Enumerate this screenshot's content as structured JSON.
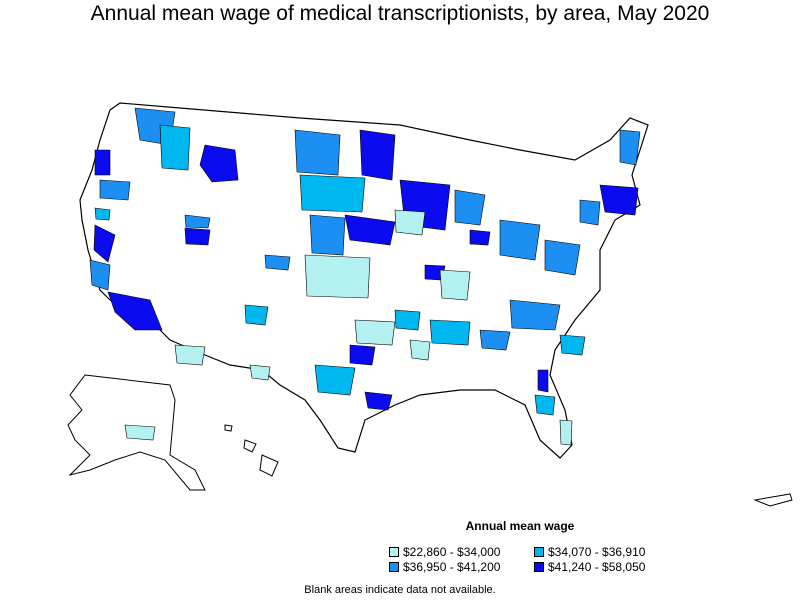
{
  "title": "Annual mean wage of medical transcriptionists, by area, May 2020",
  "legend": {
    "title": "Annual mean wage",
    "items": [
      {
        "label": "$22,860 - $34,000",
        "color": "#b3f0f0"
      },
      {
        "label": "$34,070 - $36,910",
        "color": "#00b7ef"
      },
      {
        "label": "$36,950 - $41,200",
        "color": "#1e8ff2"
      },
      {
        "label": "$41,240 - $58,050",
        "color": "#0b0bf0"
      }
    ]
  },
  "note": "Blank areas indicate data not available.",
  "colors": {
    "none": "#ffffff",
    "border": "#000000"
  }
}
